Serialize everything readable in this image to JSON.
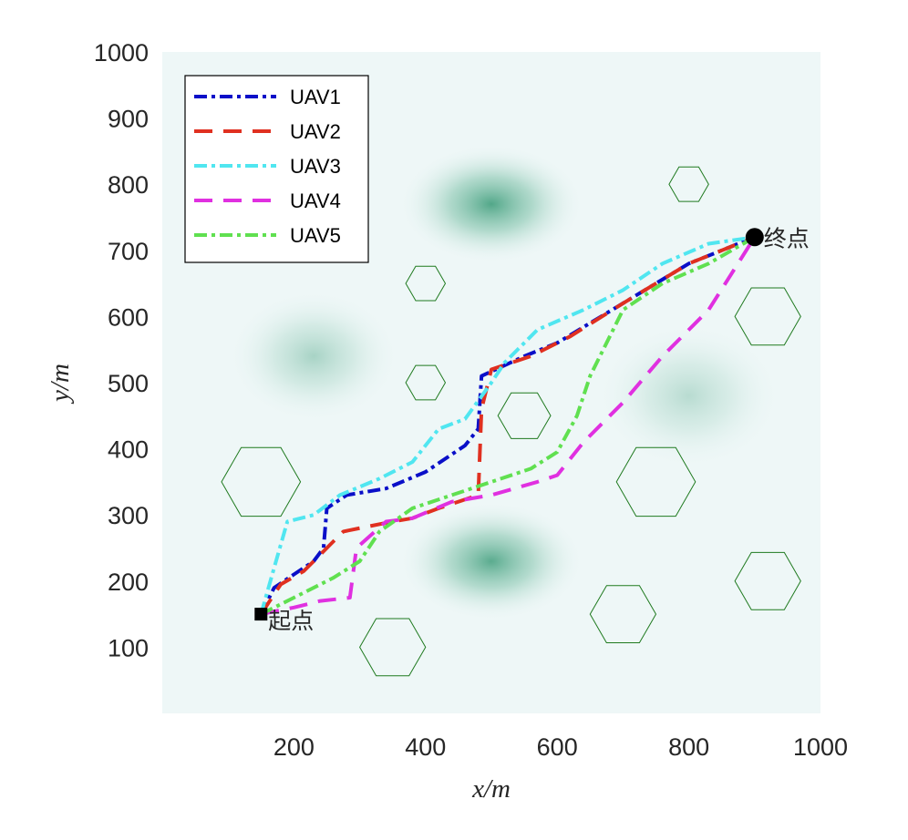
{
  "chart_data": {
    "type": "line",
    "title": "",
    "xlabel": "x/m",
    "ylabel": "y/m",
    "xlim": [
      0,
      1000
    ],
    "ylim": [
      0,
      1000
    ],
    "xticks": [
      200,
      400,
      600,
      800,
      1000
    ],
    "yticks": [
      100,
      200,
      300,
      400,
      500,
      600,
      700,
      800,
      900,
      1000
    ],
    "legend_position": "top-left",
    "start": {
      "label": "起点",
      "x": 150,
      "y": 150
    },
    "goal": {
      "label": "终点",
      "x": 900,
      "y": 720
    },
    "series": [
      {
        "name": "UAV1",
        "color": "#0a0fc8",
        "dash": "14 5 4 5",
        "points": [
          [
            150,
            150
          ],
          [
            170,
            190
          ],
          [
            200,
            210
          ],
          [
            230,
            230
          ],
          [
            245,
            250
          ],
          [
            250,
            310
          ],
          [
            280,
            330
          ],
          [
            340,
            340
          ],
          [
            400,
            365
          ],
          [
            460,
            405
          ],
          [
            480,
            430
          ],
          [
            485,
            510
          ],
          [
            550,
            540
          ],
          [
            600,
            560
          ],
          [
            700,
            620
          ],
          [
            800,
            680
          ],
          [
            900,
            720
          ]
        ]
      },
      {
        "name": "UAV2",
        "color": "#e03020",
        "dash": "20 12",
        "points": [
          [
            150,
            150
          ],
          [
            180,
            195
          ],
          [
            215,
            215
          ],
          [
            255,
            255
          ],
          [
            275,
            275
          ],
          [
            300,
            280
          ],
          [
            350,
            290
          ],
          [
            380,
            295
          ],
          [
            420,
            310
          ],
          [
            480,
            330
          ],
          [
            485,
            460
          ],
          [
            500,
            520
          ],
          [
            560,
            540
          ],
          [
            620,
            570
          ],
          [
            700,
            620
          ],
          [
            800,
            680
          ],
          [
            900,
            720
          ]
        ]
      },
      {
        "name": "UAV3",
        "color": "#50e6f0",
        "dash": "14 5 4 5",
        "points": [
          [
            150,
            150
          ],
          [
            170,
            220
          ],
          [
            190,
            290
          ],
          [
            230,
            300
          ],
          [
            270,
            330
          ],
          [
            330,
            355
          ],
          [
            380,
            380
          ],
          [
            420,
            430
          ],
          [
            460,
            445
          ],
          [
            500,
            500
          ],
          [
            520,
            530
          ],
          [
            570,
            580
          ],
          [
            640,
            610
          ],
          [
            700,
            640
          ],
          [
            760,
            680
          ],
          [
            830,
            710
          ],
          [
            900,
            720
          ]
        ]
      },
      {
        "name": "UAV4",
        "color": "#e030e0",
        "dash": "20 12",
        "points": [
          [
            150,
            150
          ],
          [
            200,
            160
          ],
          [
            240,
            170
          ],
          [
            285,
            175
          ],
          [
            295,
            250
          ],
          [
            340,
            290
          ],
          [
            380,
            295
          ],
          [
            440,
            320
          ],
          [
            500,
            330
          ],
          [
            570,
            350
          ],
          [
            600,
            360
          ],
          [
            640,
            410
          ],
          [
            700,
            470
          ],
          [
            760,
            540
          ],
          [
            830,
            610
          ],
          [
            900,
            720
          ]
        ]
      },
      {
        "name": "UAV5",
        "color": "#60e050",
        "dash": "14 5 4 5",
        "points": [
          [
            150,
            150
          ],
          [
            200,
            175
          ],
          [
            260,
            205
          ],
          [
            300,
            230
          ],
          [
            330,
            275
          ],
          [
            380,
            310
          ],
          [
            440,
            330
          ],
          [
            500,
            350
          ],
          [
            560,
            370
          ],
          [
            600,
            395
          ],
          [
            630,
            450
          ],
          [
            650,
            510
          ],
          [
            700,
            610
          ],
          [
            760,
            650
          ],
          [
            830,
            680
          ],
          [
            900,
            720
          ]
        ]
      }
    ],
    "obstacles": [
      {
        "cx": 800,
        "cy": 800,
        "r": 30
      },
      {
        "cx": 400,
        "cy": 650,
        "r": 30
      },
      {
        "cx": 400,
        "cy": 500,
        "r": 30
      },
      {
        "cx": 920,
        "cy": 600,
        "r": 50
      },
      {
        "cx": 550,
        "cy": 450,
        "r": 40
      },
      {
        "cx": 150,
        "cy": 350,
        "r": 60
      },
      {
        "cx": 750,
        "cy": 350,
        "r": 60
      },
      {
        "cx": 920,
        "cy": 200,
        "r": 50
      },
      {
        "cx": 700,
        "cy": 150,
        "r": 50
      },
      {
        "cx": 350,
        "cy": 100,
        "r": 50
      }
    ],
    "terrain_peaks": [
      {
        "x": 500,
        "y": 770,
        "sx": 140,
        "sy": 90,
        "strength": 1.0
      },
      {
        "x": 500,
        "y": 230,
        "sx": 140,
        "sy": 90,
        "strength": 0.95
      },
      {
        "x": 230,
        "y": 540,
        "sx": 130,
        "sy": 100,
        "strength": 0.45
      },
      {
        "x": 800,
        "y": 480,
        "sx": 140,
        "sy": 110,
        "strength": 0.35
      }
    ]
  }
}
